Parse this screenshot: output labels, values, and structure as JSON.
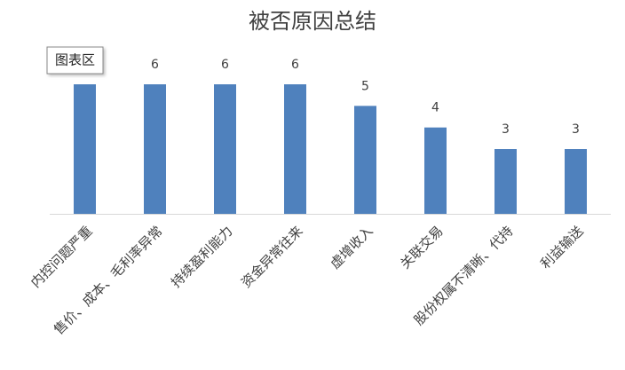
{
  "chart_data": {
    "type": "bar",
    "title": "被否原因总结",
    "categories": [
      "内控问题严重",
      "售价、成本、毛利率异常",
      "持续盈利能力",
      "资金异常往来",
      "虚增收入",
      "关联交易",
      "股份权属不清晰、代持",
      "利益输送"
    ],
    "values": [
      6,
      6,
      6,
      6,
      5,
      4,
      3,
      3
    ],
    "color": "#4f81bd",
    "tooltip": "图表区"
  }
}
